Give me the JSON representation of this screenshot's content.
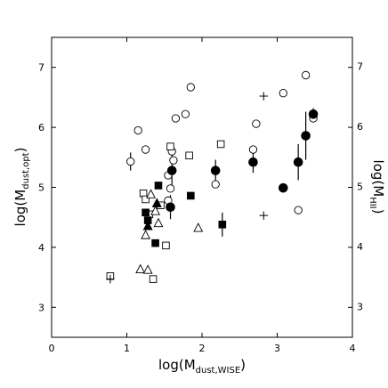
{
  "chart_data": {
    "type": "scatter",
    "xlabel": {
      "main": "log(M",
      "sub": "dust,WISE",
      "close": ")"
    },
    "ylabel_left": {
      "main": "log(M",
      "sub": "dust,opt",
      "close": ")"
    },
    "ylabel_right": {
      "main": "log(M",
      "sub": "HII",
      "close": ")"
    },
    "xlim": [
      0,
      4
    ],
    "ylim": [
      2.5,
      7.5
    ],
    "y2lim": [
      2.5,
      7.5
    ],
    "x_ticks": [
      "0",
      "1",
      "2",
      "3",
      "4"
    ],
    "y_ticks": [
      "3",
      "4",
      "5",
      "6",
      "7"
    ],
    "y2_ticks": [
      "3",
      "4",
      "5",
      "6",
      "7"
    ],
    "series": [
      {
        "marker": "open-circle",
        "points": [
          {
            "x": 1.05,
            "y": 5.43,
            "err": 0.15
          },
          {
            "x": 1.15,
            "y": 5.95
          },
          {
            "x": 1.25,
            "y": 5.63
          },
          {
            "x": 1.55,
            "y": 5.2
          },
          {
            "x": 1.6,
            "y": 5.6
          },
          {
            "x": 1.62,
            "y": 5.45
          },
          {
            "x": 1.58,
            "y": 4.98
          },
          {
            "x": 1.55,
            "y": 4.78
          },
          {
            "x": 1.65,
            "y": 6.15
          },
          {
            "x": 1.78,
            "y": 6.22
          },
          {
            "x": 1.85,
            "y": 6.67
          },
          {
            "x": 2.18,
            "y": 5.05
          },
          {
            "x": 2.68,
            "y": 5.63
          },
          {
            "x": 2.72,
            "y": 6.06
          },
          {
            "x": 3.08,
            "y": 6.57
          },
          {
            "x": 3.28,
            "y": 4.62
          },
          {
            "x": 3.38,
            "y": 6.87
          },
          {
            "x": 3.48,
            "y": 6.15
          }
        ]
      },
      {
        "marker": "filled-circle",
        "points": [
          {
            "x": 1.6,
            "y": 5.28,
            "err": 0.3
          },
          {
            "x": 1.58,
            "y": 4.67,
            "err": 0.2
          },
          {
            "x": 2.18,
            "y": 5.28,
            "err": 0.18
          },
          {
            "x": 2.68,
            "y": 5.42,
            "err": 0.18
          },
          {
            "x": 3.08,
            "y": 4.99
          },
          {
            "x": 3.28,
            "y": 5.42,
            "err": 0.3
          },
          {
            "x": 3.38,
            "y": 5.86,
            "err": 0.4
          },
          {
            "x": 3.48,
            "y": 6.22,
            "err": 0.1
          }
        ]
      },
      {
        "marker": "open-square",
        "points": [
          {
            "x": 0.78,
            "y": 3.52
          },
          {
            "x": 1.22,
            "y": 4.9
          },
          {
            "x": 1.25,
            "y": 4.8
          },
          {
            "x": 1.3,
            "y": 4.55
          },
          {
            "x": 1.35,
            "y": 3.47
          },
          {
            "x": 1.45,
            "y": 4.7
          },
          {
            "x": 1.52,
            "y": 4.03
          },
          {
            "x": 1.58,
            "y": 5.68
          },
          {
            "x": 1.83,
            "y": 5.53
          },
          {
            "x": 2.25,
            "y": 5.72
          }
        ]
      },
      {
        "marker": "filled-square",
        "points": [
          {
            "x": 1.25,
            "y": 4.58
          },
          {
            "x": 1.28,
            "y": 4.45
          },
          {
            "x": 1.38,
            "y": 4.07
          },
          {
            "x": 1.42,
            "y": 5.03
          },
          {
            "x": 1.85,
            "y": 4.86
          },
          {
            "x": 2.27,
            "y": 4.38,
            "err": 0.2
          }
        ]
      },
      {
        "marker": "open-triangle",
        "points": [
          {
            "x": 1.18,
            "y": 3.63
          },
          {
            "x": 1.28,
            "y": 3.62
          },
          {
            "x": 1.25,
            "y": 4.2
          },
          {
            "x": 1.32,
            "y": 4.88
          },
          {
            "x": 1.38,
            "y": 4.6
          },
          {
            "x": 1.42,
            "y": 4.4
          },
          {
            "x": 1.95,
            "y": 4.32
          }
        ]
      },
      {
        "marker": "filled-triangle",
        "points": [
          {
            "x": 1.28,
            "y": 4.35
          },
          {
            "x": 1.4,
            "y": 4.73
          }
        ]
      },
      {
        "marker": "plus",
        "points": [
          {
            "x": 0.78,
            "y": 3.47
          },
          {
            "x": 2.82,
            "y": 6.52
          },
          {
            "x": 2.82,
            "y": 4.53
          }
        ]
      }
    ]
  }
}
